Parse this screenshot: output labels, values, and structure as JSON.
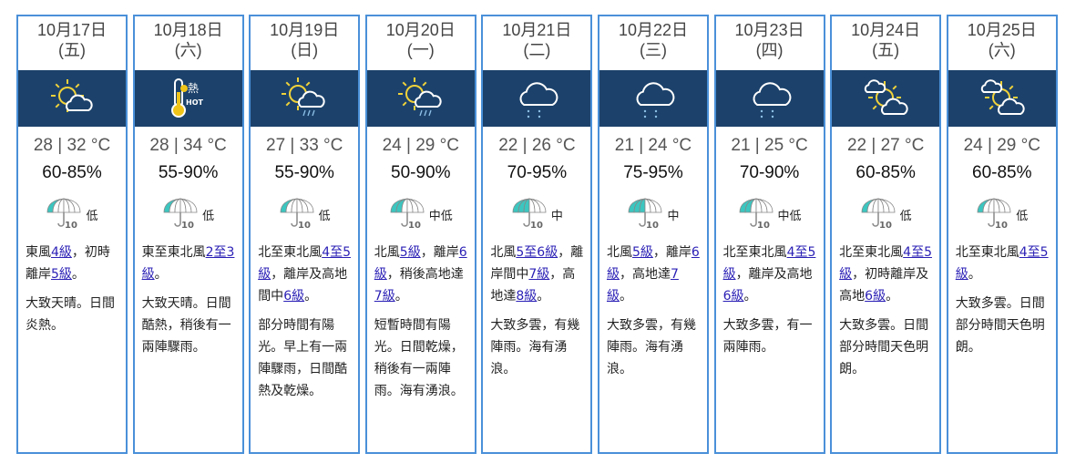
{
  "colors": {
    "border": "#4a90d9",
    "band": "#1c426b",
    "link": "#2a1fb5",
    "umbrella_fill": "#3cc6c0",
    "sun": "#f0d23a"
  },
  "days": [
    {
      "date": "10月17日",
      "weekday": "(五)",
      "icon": "sunny-periods-icon",
      "temp": "28 | 32 °C",
      "rh": "60-85%",
      "psr": "低",
      "psr_level": 1,
      "wind": [
        {
          "t": "東風"
        },
        {
          "t": "4級",
          "link": true
        },
        {
          "t": "，初時離岸"
        },
        {
          "t": "5級",
          "link": true
        },
        {
          "t": "。"
        }
      ],
      "desc": "大致天晴。日間炎熱。"
    },
    {
      "date": "10月18日",
      "weekday": "(六)",
      "icon": "hot-icon",
      "hot_label": "熱",
      "hot_en": "HOT",
      "temp": "28 | 34 °C",
      "rh": "55-90%",
      "psr": "低",
      "psr_level": 1,
      "wind": [
        {
          "t": "東至東北風"
        },
        {
          "t": "2至3級",
          "link": true
        },
        {
          "t": "。"
        }
      ],
      "desc": "大致天晴。日間酷熱，稍後有一兩陣驟雨。"
    },
    {
      "date": "10月19日",
      "weekday": "(日)",
      "icon": "sunny-showers-icon",
      "temp": "27 | 33 °C",
      "rh": "55-90%",
      "psr": "低",
      "psr_level": 1,
      "wind": [
        {
          "t": "北至東北風"
        },
        {
          "t": "4至5級",
          "link": true
        },
        {
          "t": "，離岸及高地間中"
        },
        {
          "t": "6級",
          "link": true
        },
        {
          "t": "。"
        }
      ],
      "desc": "部分時間有陽光。早上有一兩陣驟雨，日間酷熱及乾燥。"
    },
    {
      "date": "10月20日",
      "weekday": "(一)",
      "icon": "sunny-showers-icon",
      "temp": "24 | 29 °C",
      "rh": "50-90%",
      "psr": "中低",
      "psr_level": 2,
      "wind": [
        {
          "t": "北風"
        },
        {
          "t": "5級",
          "link": true
        },
        {
          "t": "，離岸"
        },
        {
          "t": "6級",
          "link": true
        },
        {
          "t": "，稍後高地達"
        },
        {
          "t": "7級",
          "link": true
        },
        {
          "t": "。"
        }
      ],
      "desc": "短暫時間有陽光。日間乾燥，稍後有一兩陣雨。海有湧浪。"
    },
    {
      "date": "10月21日",
      "weekday": "(二)",
      "icon": "rain-icon",
      "temp": "22 | 26 °C",
      "rh": "70-95%",
      "psr": "中",
      "psr_level": 3,
      "wind": [
        {
          "t": "北風"
        },
        {
          "t": "5至6級",
          "link": true
        },
        {
          "t": "，離岸間中"
        },
        {
          "t": "7級",
          "link": true
        },
        {
          "t": "，高地達"
        },
        {
          "t": "8級",
          "link": true
        },
        {
          "t": "。"
        }
      ],
      "desc": "大致多雲，有幾陣雨。海有湧浪。"
    },
    {
      "date": "10月22日",
      "weekday": "(三)",
      "icon": "rain-icon",
      "temp": "21 | 24 °C",
      "rh": "75-95%",
      "psr": "中",
      "psr_level": 3,
      "wind": [
        {
          "t": "北風"
        },
        {
          "t": "5級",
          "link": true
        },
        {
          "t": "，離岸"
        },
        {
          "t": "6級",
          "link": true
        },
        {
          "t": "，高地達"
        },
        {
          "t": "7級",
          "link": true
        },
        {
          "t": "。"
        }
      ],
      "desc": "大致多雲，有幾陣雨。海有湧浪。"
    },
    {
      "date": "10月23日",
      "weekday": "(四)",
      "icon": "rain-icon",
      "temp": "21 | 25 °C",
      "rh": "70-90%",
      "psr": "中低",
      "psr_level": 2,
      "wind": [
        {
          "t": "北至東北風"
        },
        {
          "t": "4至5級",
          "link": true
        },
        {
          "t": "，離岸及高地"
        },
        {
          "t": "6級",
          "link": true
        },
        {
          "t": "。"
        }
      ],
      "desc": "大致多雲，有一兩陣雨。"
    },
    {
      "date": "10月24日",
      "weekday": "(五)",
      "icon": "sunny-intervals-icon",
      "temp": "22 | 27 °C",
      "rh": "60-85%",
      "psr": "低",
      "psr_level": 1,
      "wind": [
        {
          "t": "北至東北風"
        },
        {
          "t": "4至5級",
          "link": true
        },
        {
          "t": "，初時離岸及高地"
        },
        {
          "t": "6級",
          "link": true
        },
        {
          "t": "。"
        }
      ],
      "desc": "大致多雲。日間部分時間天色明朗。"
    },
    {
      "date": "10月25日",
      "weekday": "(六)",
      "icon": "sunny-intervals-icon",
      "temp": "24 | 29 °C",
      "rh": "60-85%",
      "psr": "低",
      "psr_level": 1,
      "wind": [
        {
          "t": "北至東北風"
        },
        {
          "t": "4至5級",
          "link": true
        },
        {
          "t": "。"
        }
      ],
      "desc": "大致多雲。日間部分時間天色明朗。"
    }
  ]
}
